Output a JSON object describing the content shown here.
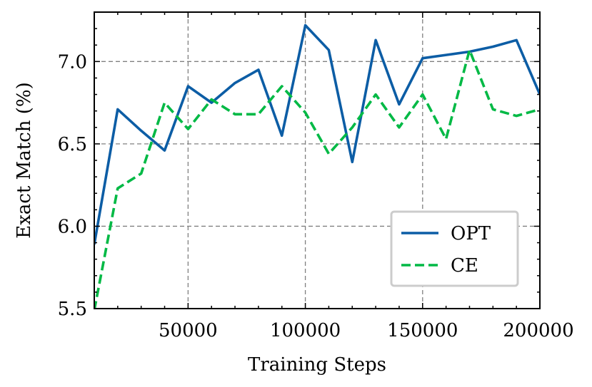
{
  "chart_data": {
    "type": "line",
    "title": "",
    "xlabel": "Training Steps",
    "ylabel": "Exact Match (%)",
    "xlim": [
      10000,
      200000
    ],
    "ylim": [
      5.5,
      7.3
    ],
    "xticks": [
      50000,
      100000,
      150000,
      200000
    ],
    "xtick_labels": [
      "50000",
      "100000",
      "150000",
      "200000"
    ],
    "yticks": [
      5.5,
      6.0,
      6.5,
      7.0
    ],
    "ytick_labels": [
      "5.5",
      "6.0",
      "6.5",
      "7.0"
    ],
    "grid": true,
    "legend_position": "lower-right",
    "series": [
      {
        "name": "OPT",
        "color": "#0C5DA5",
        "style": "solid",
        "x": [
          10000,
          20000,
          30000,
          40000,
          50000,
          60000,
          70000,
          80000,
          90000,
          100000,
          110000,
          120000,
          130000,
          140000,
          150000,
          160000,
          170000,
          180000,
          190000,
          200000
        ],
        "values": [
          5.89,
          6.71,
          6.58,
          6.46,
          6.85,
          6.75,
          6.87,
          6.95,
          6.55,
          7.22,
          7.07,
          6.39,
          7.13,
          6.74,
          7.02,
          7.04,
          7.06,
          7.09,
          7.13,
          6.8
        ]
      },
      {
        "name": "CE",
        "color": "#00B945",
        "style": "dashed",
        "x": [
          10000,
          20000,
          30000,
          40000,
          50000,
          60000,
          70000,
          80000,
          90000,
          100000,
          110000,
          120000,
          130000,
          140000,
          150000,
          160000,
          170000,
          180000,
          190000,
          200000
        ],
        "values": [
          5.49,
          6.23,
          6.32,
          6.75,
          6.59,
          6.77,
          6.68,
          6.68,
          6.85,
          6.69,
          6.44,
          6.6,
          6.8,
          6.6,
          6.8,
          6.53,
          7.07,
          6.71,
          6.67,
          6.71
        ]
      }
    ]
  }
}
